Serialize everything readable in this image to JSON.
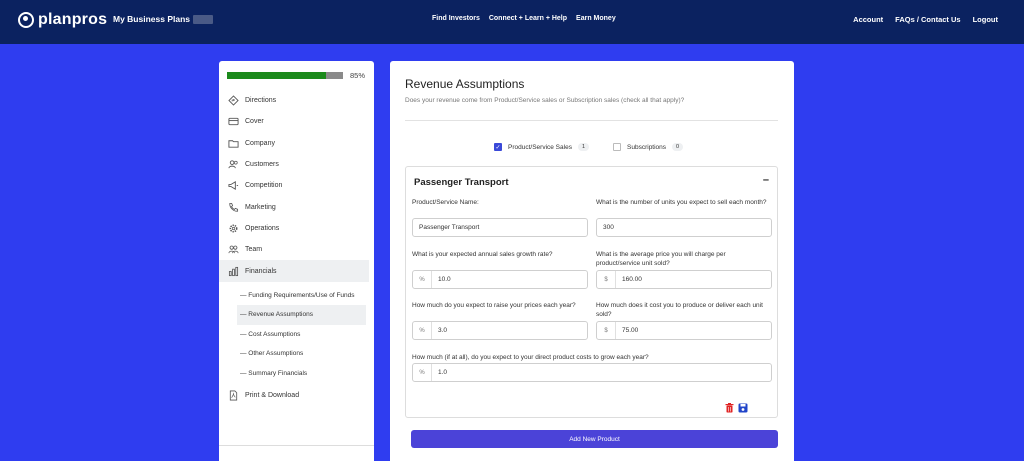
{
  "brand": {
    "name": "planpros"
  },
  "nav": {
    "my_plans": "My Business Plans",
    "middle": [
      "Find Investors",
      "Connect + Learn + Help",
      "Earn Money"
    ],
    "right": [
      "Account",
      "FAQs / Contact Us",
      "Logout"
    ]
  },
  "sidebar": {
    "progress_label": "85%",
    "progress_value": 0.85,
    "items": [
      {
        "label": "Directions",
        "icon": "directions-icon"
      },
      {
        "label": "Cover",
        "icon": "card-icon"
      },
      {
        "label": "Company",
        "icon": "folder-icon"
      },
      {
        "label": "Customers",
        "icon": "people-icon"
      },
      {
        "label": "Competition",
        "icon": "megaphone-icon"
      },
      {
        "label": "Marketing",
        "icon": "phone-icon"
      },
      {
        "label": "Operations",
        "icon": "gear-icon"
      },
      {
        "label": "Team",
        "icon": "team-icon"
      },
      {
        "label": "Financials",
        "icon": "bar-chart-icon"
      }
    ],
    "subitems": [
      "— Funding Requirements/Use of Funds",
      "— Revenue Assumptions",
      "— Cost Assumptions",
      "— Other Assumptions",
      "— Summary Financials"
    ],
    "print": {
      "label": "Print & Download",
      "icon": "pdf-icon"
    }
  },
  "main": {
    "title": "Revenue Assumptions",
    "subtitle": "Does your revenue come from Product/Service sales or Subscription sales (check all that apply)?",
    "options": [
      {
        "label": "Product/Service Sales",
        "count": "1",
        "checked": true
      },
      {
        "label": "Subscriptions",
        "count": "0",
        "checked": false
      }
    ],
    "panel": {
      "title": "Passenger Transport",
      "collapse": "–",
      "fields": {
        "name_label": "Product/Service Name:",
        "name_value": "Passenger Transport",
        "units_label": "What is the number of units you expect to sell each month?",
        "units_value": "300",
        "growth_label": "What is your expected annual sales growth rate?",
        "growth_prefix": "%",
        "growth_value": "10.0",
        "price_label": "What is the average price you will charge per product/service unit sold?",
        "price_prefix": "$",
        "price_value": "160.00",
        "raise_label": "How much do you expect to raise your prices each year?",
        "raise_prefix": "%",
        "raise_value": "3.0",
        "cost_label": "How much does it cost you to produce or deliver each unit sold?",
        "cost_prefix": "$",
        "cost_value": "75.00",
        "costgrow_label": "How much (if at all), do you expect to your direct product costs to grow each year?",
        "costgrow_prefix": "%",
        "costgrow_value": "1.0"
      }
    },
    "add_button": "Add New Product"
  },
  "colors": {
    "nav_bg": "#0b2260",
    "page_bg": "#2f3df0",
    "primary": "#4b43d8",
    "progress": "#1b8a1b",
    "delete": "#e02424",
    "save": "#2145c9"
  }
}
